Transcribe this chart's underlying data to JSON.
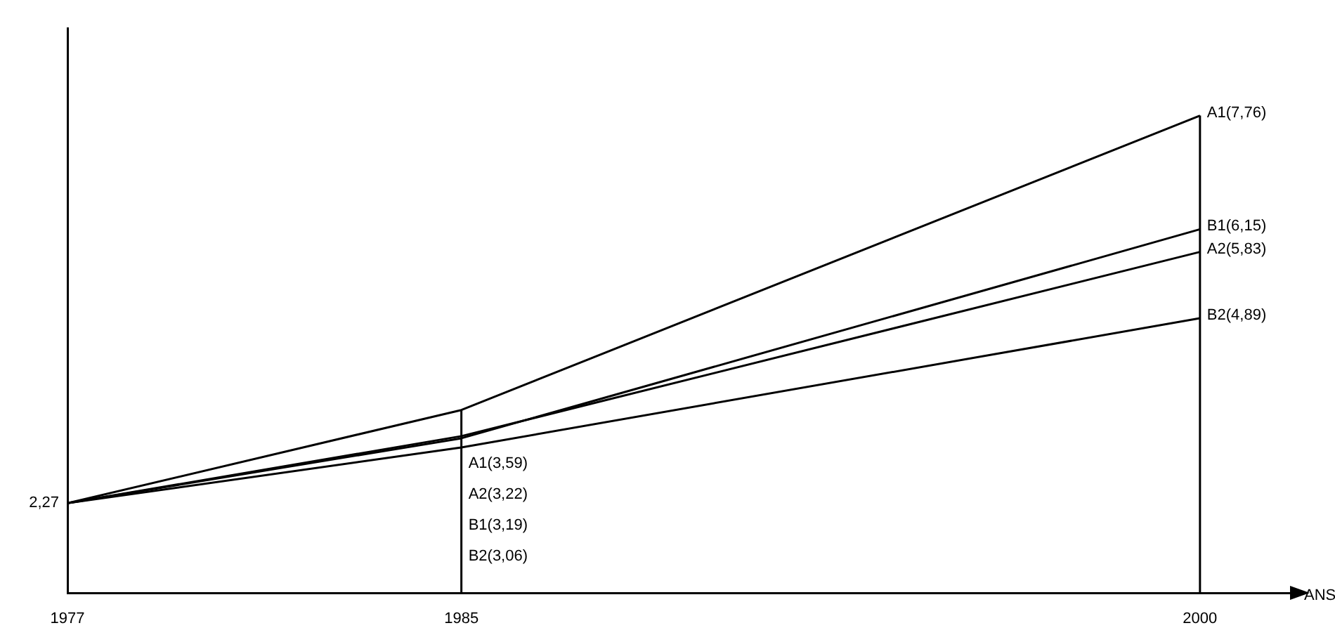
{
  "chart_data": {
    "type": "line",
    "xlabel": "ANS",
    "x": [
      1977,
      1985,
      2000
    ],
    "xlim": [
      1977,
      2002
    ],
    "xticks": [
      1977,
      1985,
      2000
    ],
    "legend": false,
    "marker": "none",
    "line_style": "solid",
    "ref_lines": [
      {
        "axis": "x",
        "value": 1985,
        "color": "#000000"
      },
      {
        "axis": "x",
        "value": 2000,
        "color": "#000000"
      }
    ],
    "annotations": [
      {
        "text": "2,27",
        "x": 1977,
        "y": 2.27
      },
      "A1(3,59)",
      "A2(3,22)",
      "B1(3,19)",
      "B2(3,06)"
    ],
    "series": [
      {
        "name": "A1",
        "color": "#000000",
        "values": [
          2.27,
          3.59,
          7.76
        ],
        "value_labels": [
          null,
          null,
          "(7,76)"
        ]
      },
      {
        "name": "A2",
        "color": "#000000",
        "values": [
          2.27,
          3.22,
          5.83
        ],
        "value_labels": [
          null,
          null,
          "(5,83)"
        ]
      },
      {
        "name": "B1",
        "color": "#000000",
        "values": [
          2.27,
          3.19,
          6.15
        ],
        "value_labels": [
          null,
          null,
          "(6,15)"
        ]
      },
      {
        "name": "B2",
        "color": "#000000",
        "values": [
          2.27,
          3.06,
          4.89
        ],
        "value_labels": [
          null,
          null,
          "(4,89)"
        ]
      }
    ]
  }
}
